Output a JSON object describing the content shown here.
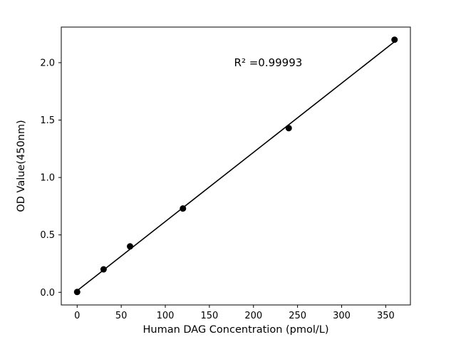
{
  "figure": {
    "background": "#ffffff",
    "aria_label": "Standard curve: OD value versus Human DAG concentration"
  },
  "chart_data": {
    "type": "scatter",
    "title": "",
    "xlabel": "Human DAG Concentration (pmol/L)",
    "ylabel": "OD Value(450nm)",
    "x": [
      0,
      30,
      60,
      120,
      240,
      360
    ],
    "y": [
      0.003,
      0.2,
      0.4,
      0.73,
      1.43,
      2.2
    ],
    "fit_line": true,
    "annotation": {
      "text": "R² =0.99993",
      "x": 178,
      "y": 1.97
    },
    "xlim": [
      -18,
      378
    ],
    "ylim": [
      -0.11,
      2.31
    ],
    "xticks": {
      "values": [
        0,
        50,
        100,
        150,
        200,
        250,
        300,
        350
      ],
      "labels": [
        "0",
        "50",
        "100",
        "150",
        "200",
        "250",
        "300",
        "350"
      ]
    },
    "yticks": {
      "values": [
        0.0,
        0.5,
        1.0,
        1.5,
        2.0
      ],
      "labels": [
        "0.0",
        "0.5",
        "1.0",
        "1.5",
        "2.0"
      ]
    },
    "grid": false,
    "legend": "none",
    "marker_radius": 4.5,
    "colors": {
      "marker": "#000000",
      "line": "#000000",
      "axis": "#000000",
      "text": "#000000"
    }
  }
}
